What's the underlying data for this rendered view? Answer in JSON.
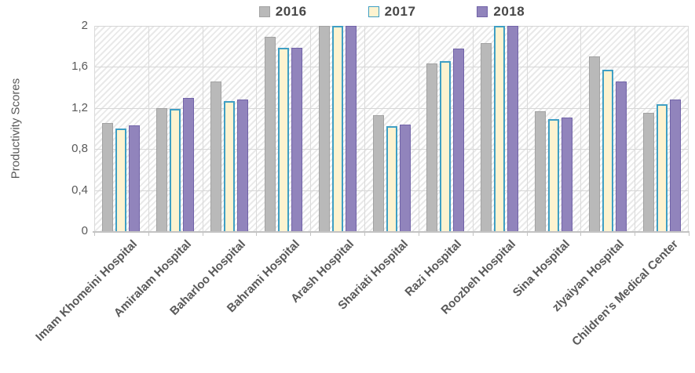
{
  "chart_data": {
    "type": "bar",
    "title": "",
    "xlabel": "",
    "ylabel": "Productivity Scores",
    "ylim": [
      0,
      2
    ],
    "grid": true,
    "legend_position": "top",
    "plot_background": "diagonal-hatch",
    "yticks": [
      {
        "v": 0,
        "label": "0"
      },
      {
        "v": 0.4,
        "label": "0,4"
      },
      {
        "v": 0.8,
        "label": "0,8"
      },
      {
        "v": 1.2,
        "label": "1,2"
      },
      {
        "v": 1.6,
        "label": "1,6"
      },
      {
        "v": 2,
        "label": "2"
      }
    ],
    "categories": [
      "Imam Khomeini Hospital",
      "Amiralam Hospital",
      "Baharloo Hospital",
      "Bahrami Hospital",
      "Arash Hospital",
      "Shariati Hospital",
      "Razi Hospital",
      "Roozbeh Hospital",
      "Sina Hospital",
      "zIyaiyan Hospital",
      "Children's Medical Center"
    ],
    "series": [
      {
        "name": "2016",
        "fill": "#b9b9b9",
        "border": "#a2a2a2",
        "values": [
          1.05,
          1.2,
          1.46,
          1.89,
          2.0,
          1.13,
          1.63,
          1.83,
          1.17,
          1.7,
          1.15
        ]
      },
      {
        "name": "2017",
        "fill": "#fdf3d0",
        "border": "#3f9fc4",
        "values": [
          1.0,
          1.19,
          1.27,
          1.79,
          2.0,
          1.02,
          1.66,
          2.0,
          1.09,
          1.57,
          1.24
        ]
      },
      {
        "name": "2018",
        "fill": "#9184bc",
        "border": "#7163a8",
        "values": [
          1.03,
          1.3,
          1.28,
          1.79,
          2.0,
          1.04,
          1.78,
          2.0,
          1.11,
          1.46,
          1.28
        ]
      }
    ]
  }
}
